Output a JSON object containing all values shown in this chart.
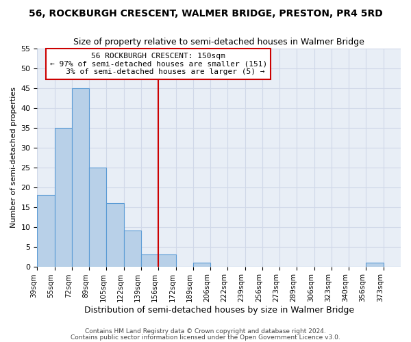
{
  "title": "56, ROCKBURGH CRESCENT, WALMER BRIDGE, PRESTON, PR4 5RD",
  "subtitle": "Size of property relative to semi-detached houses in Walmer Bridge",
  "xlabel": "Distribution of semi-detached houses by size in Walmer Bridge",
  "ylabel": "Number of semi-detached properties",
  "footer1": "Contains HM Land Registry data © Crown copyright and database right 2024.",
  "footer2": "Contains public sector information licensed under the Open Government Licence v3.0.",
  "categories": [
    "39sqm",
    "55sqm",
    "72sqm",
    "89sqm",
    "105sqm",
    "122sqm",
    "139sqm",
    "156sqm",
    "172sqm",
    "189sqm",
    "206sqm",
    "222sqm",
    "239sqm",
    "256sqm",
    "273sqm",
    "289sqm",
    "306sqm",
    "323sqm",
    "340sqm",
    "356sqm",
    "373sqm"
  ],
  "values": [
    18,
    35,
    45,
    25,
    16,
    9,
    3,
    3,
    0,
    1,
    0,
    0,
    0,
    0,
    0,
    0,
    0,
    0,
    0,
    1,
    0
  ],
  "bar_color": "#b8d0e8",
  "bar_edge_color": "#5b9bd5",
  "property_line_idx": 7,
  "property_label": "56 ROCKBURGH CRESCENT: 150sqm",
  "smaller_pct": "97%",
  "smaller_count": 151,
  "larger_pct": "3%",
  "larger_count": 5,
  "annotation_box_color": "#ffffff",
  "annotation_box_edge": "#cc0000",
  "vline_color": "#cc0000",
  "ylim": [
    0,
    55
  ],
  "yticks": [
    0,
    5,
    10,
    15,
    20,
    25,
    30,
    35,
    40,
    45,
    50,
    55
  ],
  "grid_color": "#d0d8e8",
  "bg_color": "#ffffff",
  "plot_bg_color": "#e8eef6"
}
